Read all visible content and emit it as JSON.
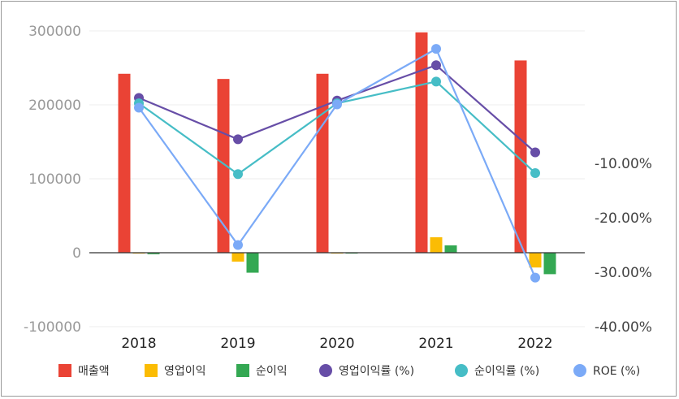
{
  "chart_data": {
    "type": "bar+line",
    "categories": [
      "2018",
      "2019",
      "2020",
      "2021",
      "2022"
    ],
    "bar_series": [
      {
        "name": "매출액",
        "color": "#ea4335",
        "values": [
          242000,
          235000,
          242000,
          298000,
          260000
        ]
      },
      {
        "name": "영업이익",
        "color": "#fbbc04",
        "values": [
          0,
          -12000,
          0,
          21000,
          -20000
        ]
      },
      {
        "name": "순이익",
        "color": "#34a853",
        "values": [
          -2000,
          -27000,
          0,
          10000,
          -29000
        ]
      }
    ],
    "line_series": [
      {
        "name": "영업이익률 (%)",
        "color": "#674ea7",
        "values": [
          2.0,
          -5.6,
          1.5,
          8.0,
          -8.0
        ]
      },
      {
        "name": "순이익률 (%)",
        "color": "#46bdc6",
        "values": [
          1.0,
          -12.0,
          1.0,
          5.0,
          -11.8
        ]
      },
      {
        "name": "ROE (%)",
        "color": "#7baaf7",
        "values": [
          0.2,
          -25.0,
          0.8,
          11.0,
          -31.0
        ]
      }
    ],
    "y_left": {
      "ticks": [
        "300000",
        "200000",
        "100000",
        "0",
        "-100000"
      ],
      "min": -100000,
      "max": 300000
    },
    "y_right": {
      "ticks": [
        "-10.00%",
        "-20.00%",
        "-30.00%",
        "-40.00%"
      ],
      "min": -40,
      "max": 14.3
    },
    "legend_position": "bottom",
    "grid": true
  }
}
